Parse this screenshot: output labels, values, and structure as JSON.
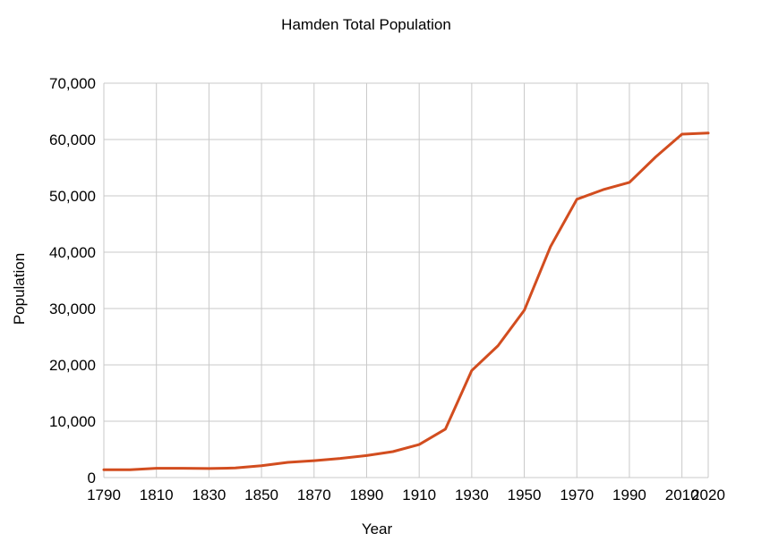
{
  "chart_data": {
    "type": "line",
    "title": "Hamden Total Population",
    "xlabel": "Year",
    "ylabel": "Population",
    "xlim": [
      1790,
      2020
    ],
    "ylim": [
      0,
      70000
    ],
    "x_ticks": [
      "1790",
      "1810",
      "1830",
      "1850",
      "1870",
      "1890",
      "1910",
      "1930",
      "1950",
      "1970",
      "1990",
      "2010",
      "2020"
    ],
    "y_ticks": [
      "0",
      "10,000",
      "20,000",
      "30,000",
      "40,000",
      "50,000",
      "60,000",
      "70,000"
    ],
    "x_tick_values": [
      1790,
      1810,
      1830,
      1850,
      1870,
      1890,
      1910,
      1930,
      1950,
      1970,
      1990,
      2010,
      2020
    ],
    "y_tick_values": [
      0,
      10000,
      20000,
      30000,
      40000,
      50000,
      60000,
      70000
    ],
    "x_grid_values": [
      1790,
      1810,
      1830,
      1850,
      1870,
      1890,
      1910,
      1930,
      1950,
      1970,
      1990,
      2010,
      2020
    ],
    "grid": true,
    "legend": "none",
    "series": [
      {
        "color": "#d24d1f",
        "x": [
          1790,
          1800,
          1810,
          1820,
          1830,
          1840,
          1850,
          1860,
          1870,
          1880,
          1890,
          1900,
          1910,
          1920,
          1930,
          1940,
          1950,
          1960,
          1970,
          1980,
          1990,
          2000,
          2010,
          2020
        ],
        "y": [
          1400,
          1400,
          1650,
          1650,
          1600,
          1700,
          2100,
          2700,
          3000,
          3400,
          3900,
          4600,
          5850,
          8600,
          19000,
          23400,
          29700,
          41000,
          49400,
          51100,
          52400,
          56900,
          60950,
          61150
        ]
      }
    ]
  }
}
